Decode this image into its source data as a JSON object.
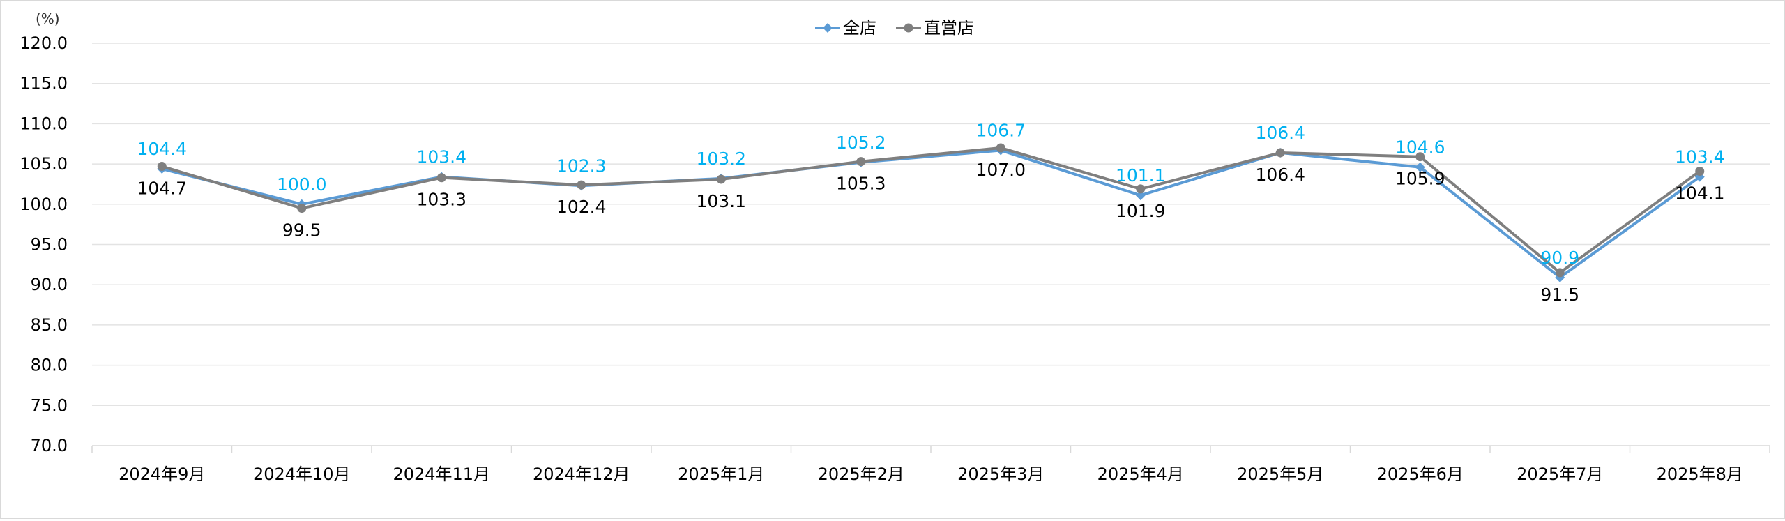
{
  "chart_data": {
    "type": "line",
    "unit_label": "(%)",
    "categories": [
      "2024年9月",
      "2024年10月",
      "2024年11月",
      "2024年12月",
      "2025年1月",
      "2025年2月",
      "2025年3月",
      "2025年4月",
      "2025年5月",
      "2025年6月",
      "2025年7月",
      "2025年8月"
    ],
    "series": [
      {
        "name": "全店",
        "color": "#5b9bd5",
        "label_color": "#00b0f0",
        "marker": "diamond",
        "values": [
          104.4,
          100.0,
          103.4,
          102.3,
          103.2,
          105.2,
          106.7,
          101.1,
          106.4,
          104.6,
          90.9,
          103.4
        ]
      },
      {
        "name": "直営店",
        "color": "#7f7f7f",
        "label_color": "#000000",
        "marker": "circle",
        "values": [
          104.7,
          99.5,
          103.3,
          102.4,
          103.1,
          105.3,
          107.0,
          101.9,
          106.4,
          105.9,
          91.5,
          104.1
        ]
      }
    ],
    "ylim": [
      70.0,
      120.0
    ],
    "ytick_step": 5.0,
    "yticks": [
      "70.0",
      "75.0",
      "80.0",
      "85.0",
      "90.0",
      "95.0",
      "100.0",
      "105.0",
      "110.0",
      "115.0",
      "120.0"
    ],
    "grid": true,
    "legend_position": "top-center"
  }
}
